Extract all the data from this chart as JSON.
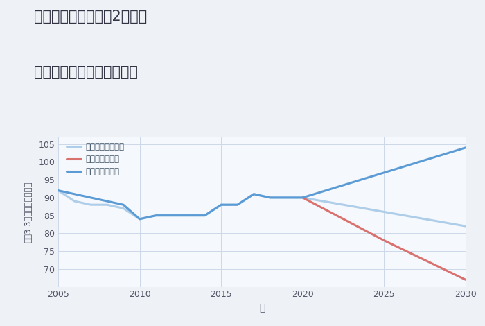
{
  "title_line1": "三重県名張市希央台2番町の",
  "title_line2": "中古マンションの価格推移",
  "xlabel": "年",
  "ylabel": "平（3.3㎡）単価（万円）",
  "background_color": "#eef2f7",
  "plot_bg_color": "#f5f8fc",
  "ylim": [
    65,
    107
  ],
  "yticks": [
    70,
    75,
    80,
    85,
    90,
    95,
    100,
    105
  ],
  "xticks": [
    2005,
    2010,
    2015,
    2020,
    2025,
    2030
  ],
  "good_scenario": {
    "x": [
      2005,
      2006,
      2007,
      2008,
      2009,
      2010,
      2011,
      2012,
      2013,
      2014,
      2015,
      2016,
      2017,
      2018,
      2019,
      2020,
      2025,
      2030
    ],
    "y": [
      92,
      91,
      90,
      89,
      88,
      84,
      85,
      85,
      85,
      85,
      88,
      88,
      91,
      90,
      90,
      90,
      97,
      104
    ],
    "color": "#5b9bd5",
    "label": "グッドシナリオ",
    "linewidth": 2.2
  },
  "bad_scenario": {
    "x": [
      2020,
      2025,
      2030
    ],
    "y": [
      90,
      78,
      67
    ],
    "color": "#d9716e",
    "label": "バッドシナリオ",
    "linewidth": 2.2
  },
  "normal_scenario": {
    "x": [
      2005,
      2006,
      2007,
      2008,
      2009,
      2010,
      2011,
      2012,
      2013,
      2014,
      2015,
      2016,
      2017,
      2018,
      2019,
      2020,
      2025,
      2030
    ],
    "y": [
      92,
      89,
      88,
      88,
      87,
      84,
      85,
      85,
      85,
      85,
      88,
      88,
      91,
      90,
      90,
      90,
      86,
      82
    ],
    "color": "#aecde8",
    "label": "ノーマルシナリオ",
    "linewidth": 2.2
  },
  "grid_color": "#ccd8e8",
  "title_color": "#333344",
  "axis_label_color": "#555566",
  "tick_color": "#555566",
  "legend_text_color": "#445566"
}
